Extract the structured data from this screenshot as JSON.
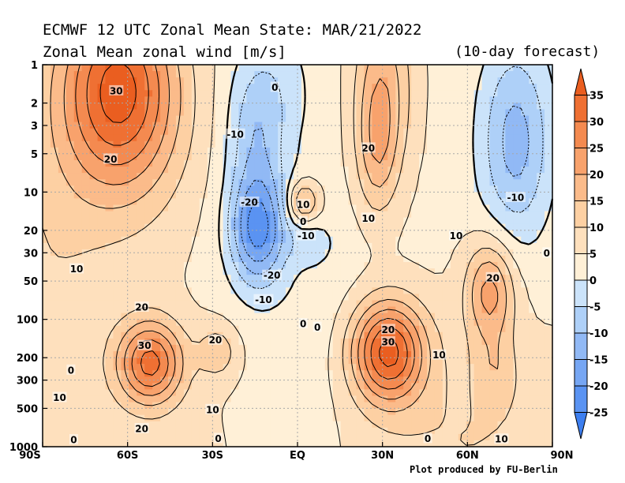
{
  "title": "ECMWF 12 UTC Zonal Mean State: MAR/21/2022",
  "subtitle": "Zonal Mean zonal wind [m/s]",
  "forecast_note": "(10-day forecast)",
  "credit": "Plot produced by FU-Berlin",
  "chart_data": {
    "type": "contour",
    "x_ticks": [
      "90S",
      "60S",
      "30S",
      "EQ",
      "30N",
      "60N",
      "90N"
    ],
    "x_tick_values": [
      -90,
      -60,
      -30,
      0,
      30,
      60,
      90
    ],
    "y_ticks": [
      "1",
      "2",
      "3",
      "5",
      "10",
      "20",
      "30",
      "50",
      "100",
      "200",
      "300",
      "500",
      "1000"
    ],
    "y_tick_values": [
      1,
      2,
      3,
      5,
      10,
      20,
      30,
      50,
      100,
      200,
      300,
      500,
      1000
    ],
    "xlim": [
      -90,
      90
    ],
    "ylim": [
      1000,
      1
    ],
    "y_scale": "log",
    "grid": true,
    "colorbar": {
      "levels": [
        -25,
        -20,
        -15,
        -10,
        -5,
        0,
        5,
        10,
        15,
        20,
        25,
        30,
        35
      ],
      "labels": [
        "35",
        "30",
        "25",
        "20",
        "15",
        "10",
        "5",
        "0",
        "-5",
        "-10",
        "-15",
        "-20",
        "-25"
      ],
      "colors": [
        "#3d7ff0",
        "#5a93f2",
        "#76a6f3",
        "#91b9f5",
        "#aed0f8",
        "#cbe3fa",
        "#fff0d7",
        "#fee0bd",
        "#fdd0a3",
        "#fbbb8a",
        "#f8a26c",
        "#f48a50",
        "#ef7033",
        "#ea5e20"
      ]
    },
    "contour_labels": [
      {
        "text": "30",
        "x": -64,
        "p": 1.6
      },
      {
        "text": "20",
        "x": -66,
        "p": 5.5
      },
      {
        "text": "10",
        "x": -78,
        "p": 40
      },
      {
        "text": "20",
        "x": -55,
        "p": 80
      },
      {
        "text": "30",
        "x": -54,
        "p": 160
      },
      {
        "text": "20",
        "x": -29,
        "p": 145
      },
      {
        "text": "10",
        "x": -30,
        "p": 510
      },
      {
        "text": "20",
        "x": -55,
        "p": 720
      },
      {
        "text": "0",
        "x": -80,
        "p": 250
      },
      {
        "text": "10",
        "x": -84,
        "p": 410
      },
      {
        "text": "0",
        "x": -79,
        "p": 880
      },
      {
        "text": "0",
        "x": -28,
        "p": 860
      },
      {
        "text": "0",
        "x": -8,
        "p": 1.5
      },
      {
        "text": "-10",
        "x": -22,
        "p": 3.5
      },
      {
        "text": "-20",
        "x": -17,
        "p": 12
      },
      {
        "text": "-20",
        "x": -9,
        "p": 45
      },
      {
        "text": "-10",
        "x": -12,
        "p": 70
      },
      {
        "text": "0",
        "x": 2,
        "p": 108
      },
      {
        "text": "0",
        "x": 7,
        "p": 115
      },
      {
        "text": "10",
        "x": 2,
        "p": 12.5
      },
      {
        "text": "0",
        "x": 2,
        "p": 17
      },
      {
        "text": "-10",
        "x": 3,
        "p": 22
      },
      {
        "text": "20",
        "x": 25,
        "p": 4.5
      },
      {
        "text": "10",
        "x": 25,
        "p": 16
      },
      {
        "text": "10",
        "x": 56,
        "p": 22
      },
      {
        "text": "0",
        "x": 88,
        "p": 30
      },
      {
        "text": "-10",
        "x": 77,
        "p": 11
      },
      {
        "text": "20",
        "x": 69,
        "p": 47
      },
      {
        "text": "20",
        "x": 32,
        "p": 120
      },
      {
        "text": "30",
        "x": 32,
        "p": 150
      },
      {
        "text": "10",
        "x": 50,
        "p": 190
      },
      {
        "text": "0",
        "x": 46,
        "p": 860
      },
      {
        "text": "10",
        "x": 72,
        "p": 870
      }
    ]
  }
}
